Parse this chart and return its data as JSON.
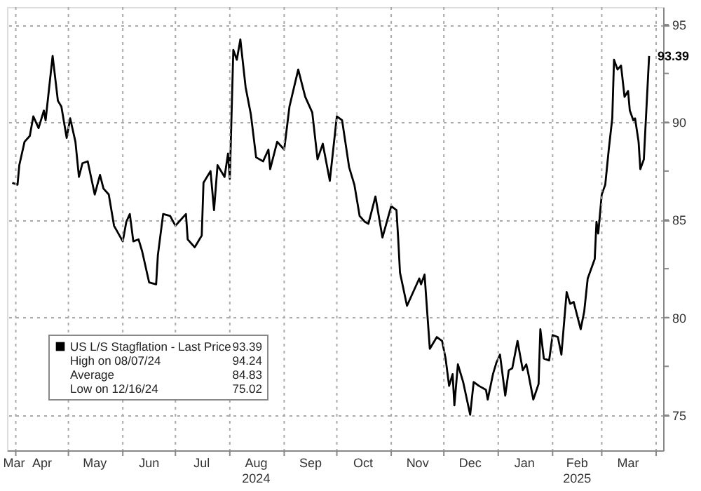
{
  "chart_data": {
    "type": "line",
    "x": [
      "2024-03-30",
      "2024-04-02",
      "2024-04-03",
      "2024-04-06",
      "2024-04-09",
      "2024-04-11",
      "2024-04-14",
      "2024-04-17",
      "2024-04-18",
      "2024-04-22",
      "2024-04-25",
      "2024-04-27",
      "2024-04-30",
      "2024-05-02",
      "2024-05-05",
      "2024-05-07",
      "2024-05-09",
      "2024-05-12",
      "2024-05-16",
      "2024-05-19",
      "2024-05-21",
      "2024-05-24",
      "2024-05-27",
      "2024-06-01",
      "2024-06-03",
      "2024-06-05",
      "2024-06-07",
      "2024-06-10",
      "2024-06-12",
      "2024-06-16",
      "2024-06-20",
      "2024-06-21",
      "2024-06-24",
      "2024-06-28",
      "2024-07-01",
      "2024-07-07",
      "2024-07-08",
      "2024-07-12",
      "2024-07-16",
      "2024-07-17",
      "2024-07-21",
      "2024-07-23",
      "2024-07-25",
      "2024-07-29",
      "2024-07-31",
      "2024-08-01",
      "2024-08-03",
      "2024-08-05",
      "2024-08-07",
      "2024-08-10",
      "2024-08-13",
      "2024-08-16",
      "2024-08-20",
      "2024-08-23",
      "2024-08-24",
      "2024-08-28",
      "2024-09-01",
      "2024-09-04",
      "2024-09-09",
      "2024-09-13",
      "2024-09-17",
      "2024-09-20",
      "2024-09-23",
      "2024-09-27",
      "2024-10-01",
      "2024-10-04",
      "2024-10-08",
      "2024-10-11",
      "2024-10-14",
      "2024-10-17",
      "2024-10-19",
      "2024-10-23",
      "2024-10-27",
      "2024-11-01",
      "2024-11-04",
      "2024-11-05",
      "2024-11-06",
      "2024-11-10",
      "2024-11-13",
      "2024-11-17",
      "2024-11-18",
      "2024-11-20",
      "2024-11-23",
      "2024-11-27",
      "2024-11-30",
      "2024-12-02",
      "2024-12-04",
      "2024-12-06",
      "2024-12-07",
      "2024-12-09",
      "2024-12-12",
      "2024-12-16",
      "2024-12-18",
      "2024-12-21",
      "2024-12-25",
      "2024-12-26",
      "2024-12-29",
      "2024-12-31",
      "2025-01-02",
      "2025-01-05",
      "2025-01-07",
      "2025-01-09",
      "2025-01-12",
      "2025-01-13",
      "2025-01-15",
      "2025-01-17",
      "2025-01-18",
      "2025-01-21",
      "2025-01-24",
      "2025-01-25",
      "2025-01-27",
      "2025-01-30",
      "2025-02-01",
      "2025-02-04",
      "2025-02-06",
      "2025-02-09",
      "2025-02-11",
      "2025-02-13",
      "2025-02-17",
      "2025-02-19",
      "2025-02-21",
      "2025-02-25",
      "2025-02-26",
      "2025-02-27",
      "2025-03-01",
      "2025-03-03",
      "2025-03-05",
      "2025-03-07",
      "2025-03-08",
      "2025-03-10",
      "2025-03-12",
      "2025-03-14",
      "2025-03-16",
      "2025-03-17",
      "2025-03-19",
      "2025-03-20",
      "2025-03-22",
      "2025-03-23",
      "2025-03-25",
      "2025-03-28"
    ],
    "series": [
      {
        "name": "US L/S Stagflation - Last Price",
        "color": "#000000",
        "values": [
          86.9,
          86.8,
          87.8,
          89.0,
          89.3,
          90.3,
          89.7,
          90.6,
          90.1,
          93.4,
          91.1,
          90.8,
          89.2,
          90.2,
          89.0,
          87.2,
          87.9,
          88.0,
          86.3,
          87.3,
          86.6,
          86.3,
          84.7,
          83.9,
          84.9,
          85.3,
          83.9,
          84.0,
          83.4,
          81.8,
          81.7,
          83.2,
          85.3,
          85.2,
          84.7,
          85.3,
          84.0,
          83.6,
          84.2,
          86.9,
          87.5,
          85.5,
          87.8,
          87.2,
          88.4,
          87.1,
          93.7,
          93.2,
          94.24,
          91.8,
          90.4,
          88.2,
          88.0,
          88.6,
          87.6,
          89.0,
          88.6,
          90.8,
          92.7,
          91.3,
          90.5,
          88.1,
          88.9,
          87.0,
          90.3,
          90.1,
          87.7,
          86.8,
          85.2,
          84.9,
          84.8,
          86.2,
          84.1,
          85.7,
          85.5,
          84.0,
          82.3,
          80.6,
          81.2,
          82.0,
          81.7,
          82.2,
          78.4,
          79.0,
          78.8,
          77.9,
          76.5,
          77.1,
          75.5,
          77.6,
          76.7,
          75.02,
          76.7,
          76.5,
          76.3,
          75.8,
          77.1,
          77.7,
          78.1,
          76.0,
          77.3,
          77.4,
          78.8,
          78.3,
          77.3,
          77.6,
          77.2,
          75.8,
          76.6,
          79.4,
          77.9,
          77.8,
          79.1,
          79.0,
          78.1,
          81.3,
          80.7,
          80.8,
          79.4,
          80.3,
          82.0,
          83.0,
          84.9,
          84.3,
          86.3,
          86.8,
          88.6,
          90.2,
          93.2,
          92.7,
          92.9,
          91.3,
          91.6,
          90.6,
          90.1,
          90.2,
          89.0,
          87.6,
          88.1,
          93.39
        ]
      }
    ],
    "xlim": [
      "2024-03-27",
      "2025-04-05"
    ],
    "xticks": [
      {
        "value": "2024-03-31",
        "label": "Mar"
      },
      {
        "value": "2024-04-01",
        "label": null
      },
      {
        "value": "2024-04-16",
        "label": "Apr"
      },
      {
        "value": "2024-05-01",
        "label": null
      },
      {
        "value": "2024-05-16",
        "label": "May"
      },
      {
        "value": "2024-06-01",
        "label": null
      },
      {
        "value": "2024-06-16",
        "label": "Jun"
      },
      {
        "value": "2024-07-01",
        "label": null
      },
      {
        "value": "2024-07-16",
        "label": "Jul"
      },
      {
        "value": "2024-08-01",
        "label": null
      },
      {
        "value": "2024-08-16",
        "label": "Aug\n2024"
      },
      {
        "value": "2024-09-01",
        "label": null
      },
      {
        "value": "2024-09-16",
        "label": "Sep"
      },
      {
        "value": "2024-10-01",
        "label": null
      },
      {
        "value": "2024-10-16",
        "label": "Oct"
      },
      {
        "value": "2024-11-01",
        "label": null
      },
      {
        "value": "2024-11-16",
        "label": "Nov"
      },
      {
        "value": "2024-12-01",
        "label": null
      },
      {
        "value": "2024-12-16",
        "label": "Dec"
      },
      {
        "value": "2025-01-01",
        "label": null
      },
      {
        "value": "2025-01-16",
        "label": "Jan"
      },
      {
        "value": "2025-02-01",
        "label": null
      },
      {
        "value": "2025-02-15",
        "label": "Feb\n2025"
      },
      {
        "value": "2025-03-01",
        "label": null
      },
      {
        "value": "2025-03-16",
        "label": "Mar"
      },
      {
        "value": "2025-04-01",
        "label": null
      }
    ],
    "ylim": [
      73.2,
      95.9
    ],
    "yticks": [
      75,
      {
        "value": 77.5,
        "label": null
      },
      80,
      {
        "value": 82.5,
        "label": null
      },
      85,
      {
        "value": 87.5,
        "label": null
      },
      90,
      {
        "value": 92.5,
        "label": null
      },
      95
    ],
    "grid": true,
    "legend": "bottom left",
    "annotations": [
      {
        "text": "93.39",
        "x": "2025-03-28",
        "y": 93.39
      },
      "93.39",
      "High on 08/07/24",
      "94.24",
      "Average",
      "84.83",
      "Low on 12/16/24",
      "75.02"
    ]
  }
}
